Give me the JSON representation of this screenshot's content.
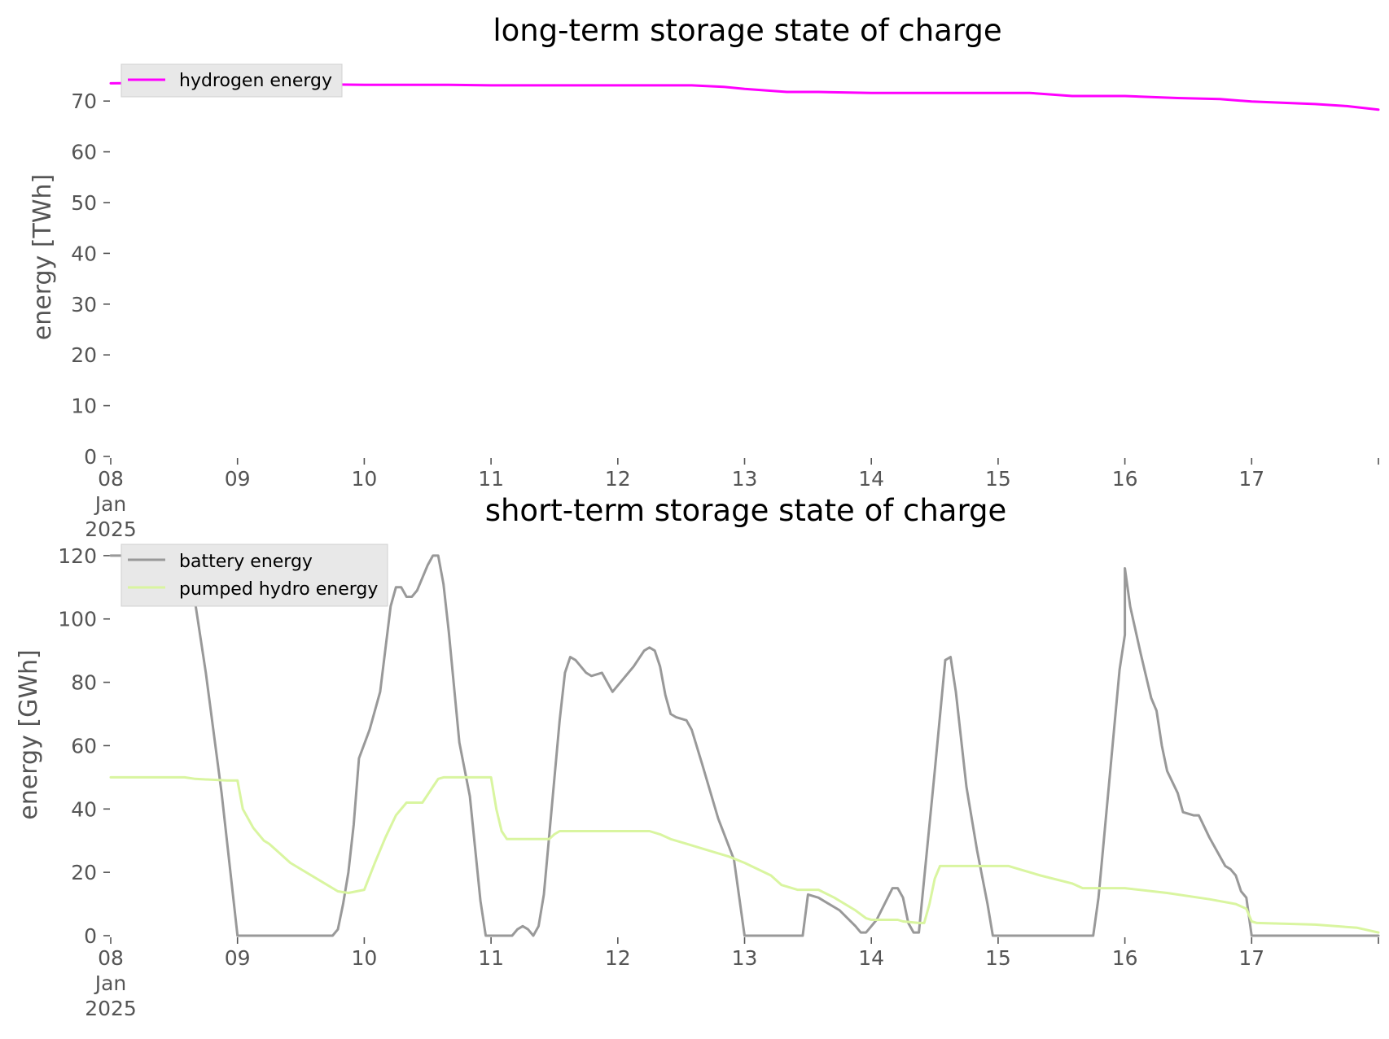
{
  "chart_data": [
    {
      "type": "line",
      "title": "long-term storage state of charge",
      "xlabel": "",
      "ylabel": "energy [TWh]",
      "x_tick_labels": [
        "08\nJan\n2025",
        "09",
        "10",
        "11",
        "12",
        "13",
        "14",
        "15",
        "16",
        "17"
      ],
      "x_tick_dates": [
        "2025-01-08",
        "2025-01-09",
        "2025-01-10",
        "2025-01-11",
        "2025-01-12",
        "2025-01-13",
        "2025-01-14",
        "2025-01-15",
        "2025-01-16",
        "2025-01-17"
      ],
      "xlim": [
        "2025-01-08 00:00",
        "2025-01-18 00:00"
      ],
      "y_ticks": [
        0,
        10,
        20,
        30,
        40,
        50,
        60,
        70
      ],
      "ylim": [
        0,
        75
      ],
      "grid": false,
      "legend_position": "top-left",
      "series": [
        {
          "name": "hydrogen energy",
          "color": "#ff00ff",
          "points": [
            [
              "2025-01-08 00:00",
              73.5
            ],
            [
              "2025-01-08 12:00",
              73.6
            ],
            [
              "2025-01-09 06:00",
              73.4
            ],
            [
              "2025-01-10 00:00",
              73.2
            ],
            [
              "2025-01-10 16:00",
              73.2
            ],
            [
              "2025-01-11 00:00",
              73.1
            ],
            [
              "2025-01-12 00:00",
              73.1
            ],
            [
              "2025-01-12 14:00",
              73.1
            ],
            [
              "2025-01-12 20:00",
              72.8
            ],
            [
              "2025-01-13 00:00",
              72.4
            ],
            [
              "2025-01-13 08:00",
              71.8
            ],
            [
              "2025-01-13 14:00",
              71.8
            ],
            [
              "2025-01-14 00:00",
              71.6
            ],
            [
              "2025-01-15 00:00",
              71.6
            ],
            [
              "2025-01-15 06:00",
              71.6
            ],
            [
              "2025-01-15 14:00",
              71.0
            ],
            [
              "2025-01-16 00:00",
              71.0
            ],
            [
              "2025-01-16 10:00",
              70.6
            ],
            [
              "2025-01-16 18:00",
              70.4
            ],
            [
              "2025-01-17 00:00",
              69.9
            ],
            [
              "2025-01-17 12:00",
              69.4
            ],
            [
              "2025-01-17 18:00",
              69.0
            ],
            [
              "2025-01-18 00:00",
              68.3
            ]
          ]
        }
      ]
    },
    {
      "type": "line",
      "title": "short-term storage state of charge",
      "xlabel": "",
      "ylabel": "energy [GWh]",
      "x_tick_labels": [
        "08\nJan\n2025",
        "09",
        "10",
        "11",
        "12",
        "13",
        "14",
        "15",
        "16",
        "17"
      ],
      "x_tick_dates": [
        "2025-01-08",
        "2025-01-09",
        "2025-01-10",
        "2025-01-11",
        "2025-01-12",
        "2025-01-13",
        "2025-01-14",
        "2025-01-15",
        "2025-01-16",
        "2025-01-17"
      ],
      "xlim": [
        "2025-01-08 00:00",
        "2025-01-18 00:00"
      ],
      "y_ticks": [
        0,
        20,
        40,
        60,
        80,
        100,
        120
      ],
      "ylim": [
        0,
        121
      ],
      "grid": false,
      "legend_position": "top-left",
      "series": [
        {
          "name": "battery energy",
          "color": "#999999",
          "points": [
            [
              "2025-01-08 00:00",
              120
            ],
            [
              "2025-01-08 13:00",
              120
            ],
            [
              "2025-01-08 16:00",
              105
            ],
            [
              "2025-01-08 18:00",
              83
            ],
            [
              "2025-01-08 21:00",
              45
            ],
            [
              "2025-01-09 00:00",
              0
            ],
            [
              "2025-01-09 18:00",
              0
            ],
            [
              "2025-01-09 19:00",
              2
            ],
            [
              "2025-01-09 20:00",
              10
            ],
            [
              "2025-01-09 21:00",
              20
            ],
            [
              "2025-01-09 22:00",
              35
            ],
            [
              "2025-01-09 23:00",
              56
            ],
            [
              "2025-01-10 01:00",
              65
            ],
            [
              "2025-01-10 03:00",
              77
            ],
            [
              "2025-01-10 05:00",
              104
            ],
            [
              "2025-01-10 06:00",
              110
            ],
            [
              "2025-01-10 07:00",
              110
            ],
            [
              "2025-01-10 08:00",
              107
            ],
            [
              "2025-01-10 09:00",
              107
            ],
            [
              "2025-01-10 10:00",
              109
            ],
            [
              "2025-01-10 12:00",
              117
            ],
            [
              "2025-01-10 13:00",
              120
            ],
            [
              "2025-01-10 14:00",
              120
            ],
            [
              "2025-01-10 15:00",
              111
            ],
            [
              "2025-01-10 16:00",
              96
            ],
            [
              "2025-01-10 18:00",
              61
            ],
            [
              "2025-01-10 20:00",
              44
            ],
            [
              "2025-01-10 22:00",
              11
            ],
            [
              "2025-01-10 23:00",
              0
            ],
            [
              "2025-01-11 04:00",
              0
            ],
            [
              "2025-01-11 05:00",
              2
            ],
            [
              "2025-01-11 06:00",
              3
            ],
            [
              "2025-01-11 07:00",
              2
            ],
            [
              "2025-01-11 08:00",
              0
            ],
            [
              "2025-01-11 09:00",
              3
            ],
            [
              "2025-01-11 10:00",
              13
            ],
            [
              "2025-01-11 13:00",
              68
            ],
            [
              "2025-01-11 14:00",
              83
            ],
            [
              "2025-01-11 15:00",
              88
            ],
            [
              "2025-01-11 16:00",
              87
            ],
            [
              "2025-01-11 18:00",
              83
            ],
            [
              "2025-01-11 19:00",
              82
            ],
            [
              "2025-01-11 21:00",
              83
            ],
            [
              "2025-01-11 23:00",
              77
            ],
            [
              "2025-01-12 01:00",
              81
            ],
            [
              "2025-01-12 03:00",
              85
            ],
            [
              "2025-01-12 05:00",
              90
            ],
            [
              "2025-01-12 06:00",
              91
            ],
            [
              "2025-01-12 07:00",
              90
            ],
            [
              "2025-01-12 08:00",
              85
            ],
            [
              "2025-01-12 09:00",
              76
            ],
            [
              "2025-01-12 10:00",
              70
            ],
            [
              "2025-01-12 11:00",
              69
            ],
            [
              "2025-01-12 13:00",
              68
            ],
            [
              "2025-01-12 14:00",
              65
            ],
            [
              "2025-01-12 16:00",
              54
            ],
            [
              "2025-01-12 19:00",
              37
            ],
            [
              "2025-01-12 22:00",
              24
            ],
            [
              "2025-01-13 00:00",
              0
            ],
            [
              "2025-01-13 11:00",
              0
            ],
            [
              "2025-01-13 12:00",
              13
            ],
            [
              "2025-01-13 14:00",
              12
            ],
            [
              "2025-01-13 18:00",
              8
            ],
            [
              "2025-01-13 21:00",
              3
            ],
            [
              "2025-01-13 22:00",
              1
            ],
            [
              "2025-01-13 23:00",
              1
            ],
            [
              "2025-01-14 01:00",
              5
            ],
            [
              "2025-01-14 04:00",
              15
            ],
            [
              "2025-01-14 05:00",
              15
            ],
            [
              "2025-01-14 06:00",
              12
            ],
            [
              "2025-01-14 07:00",
              4
            ],
            [
              "2025-01-14 08:00",
              1
            ],
            [
              "2025-01-14 09:00",
              1
            ],
            [
              "2025-01-14 12:00",
              52
            ],
            [
              "2025-01-14 14:00",
              87
            ],
            [
              "2025-01-14 15:00",
              88
            ],
            [
              "2025-01-14 16:00",
              77
            ],
            [
              "2025-01-14 18:00",
              47
            ],
            [
              "2025-01-14 20:00",
              27
            ],
            [
              "2025-01-14 22:00",
              10
            ],
            [
              "2025-01-14 23:00",
              0
            ],
            [
              "2025-01-15 18:00",
              0
            ],
            [
              "2025-01-15 19:00",
              12
            ],
            [
              "2025-01-15 20:00",
              30
            ],
            [
              "2025-01-15 23:00",
              84
            ],
            [
              "2025-01-15 24:00",
              95
            ],
            [
              "2025-01-16 00:00",
              116
            ],
            [
              "2025-01-16 01:00",
              104
            ],
            [
              "2025-01-16 03:00",
              89
            ],
            [
              "2025-01-16 05:00",
              75
            ],
            [
              "2025-01-16 06:00",
              71
            ],
            [
              "2025-01-16 07:00",
              60
            ],
            [
              "2025-01-16 08:00",
              52
            ],
            [
              "2025-01-16 10:00",
              45
            ],
            [
              "2025-01-16 11:00",
              39
            ],
            [
              "2025-01-16 13:00",
              38
            ],
            [
              "2025-01-16 14:00",
              38
            ],
            [
              "2025-01-16 16:00",
              31
            ],
            [
              "2025-01-16 19:00",
              22
            ],
            [
              "2025-01-16 20:00",
              21
            ],
            [
              "2025-01-16 21:00",
              19
            ],
            [
              "2025-01-16 22:00",
              14
            ],
            [
              "2025-01-16 23:00",
              12
            ],
            [
              "2025-01-17 00:00",
              0
            ],
            [
              "2025-01-18 00:00",
              0
            ]
          ]
        },
        {
          "name": "pumped hydro energy",
          "color": "#d9f5a0",
          "points": [
            [
              "2025-01-08 00:00",
              50
            ],
            [
              "2025-01-08 14:00",
              50
            ],
            [
              "2025-01-08 16:00",
              49.5
            ],
            [
              "2025-01-08 22:00",
              49
            ],
            [
              "2025-01-09 00:00",
              49
            ],
            [
              "2025-01-09 01:00",
              40
            ],
            [
              "2025-01-09 03:00",
              34
            ],
            [
              "2025-01-09 05:00",
              30
            ],
            [
              "2025-01-09 06:00",
              29
            ],
            [
              "2025-01-09 08:00",
              26
            ],
            [
              "2025-01-09 10:00",
              23
            ],
            [
              "2025-01-09 16:00",
              17
            ],
            [
              "2025-01-09 19:00",
              14
            ],
            [
              "2025-01-09 21:00",
              13.5
            ],
            [
              "2025-01-10 00:00",
              14.5
            ],
            [
              "2025-01-10 02:00",
              23
            ],
            [
              "2025-01-10 04:00",
              31
            ],
            [
              "2025-01-10 06:00",
              38
            ],
            [
              "2025-01-10 08:00",
              42
            ],
            [
              "2025-01-10 10:00",
              42
            ],
            [
              "2025-01-10 11:00",
              42
            ],
            [
              "2025-01-10 13:00",
              47
            ],
            [
              "2025-01-10 14:00",
              49.5
            ],
            [
              "2025-01-10 15:00",
              50
            ],
            [
              "2025-01-11 00:00",
              50
            ],
            [
              "2025-01-11 01:00",
              40
            ],
            [
              "2025-01-11 02:00",
              33
            ],
            [
              "2025-01-11 03:00",
              30.5
            ],
            [
              "2025-01-11 11:00",
              30.5
            ],
            [
              "2025-01-11 12:00",
              32
            ],
            [
              "2025-01-11 13:00",
              33
            ],
            [
              "2025-01-12 06:00",
              33
            ],
            [
              "2025-01-12 08:00",
              32
            ],
            [
              "2025-01-12 10:00",
              30.5
            ],
            [
              "2025-01-12 13:00",
              29
            ],
            [
              "2025-01-12 17:00",
              27
            ],
            [
              "2025-01-12 21:00",
              25
            ],
            [
              "2025-01-13 00:00",
              23
            ],
            [
              "2025-01-13 05:00",
              19
            ],
            [
              "2025-01-13 07:00",
              16
            ],
            [
              "2025-01-13 10:00",
              14.5
            ],
            [
              "2025-01-13 14:00",
              14.5
            ],
            [
              "2025-01-13 17:00",
              12
            ],
            [
              "2025-01-13 21:00",
              8
            ],
            [
              "2025-01-13 23:00",
              5.5
            ],
            [
              "2025-01-14 00:00",
              5
            ],
            [
              "2025-01-14 05:00",
              5
            ],
            [
              "2025-01-14 06:00",
              4.5
            ],
            [
              "2025-01-14 09:00",
              4
            ],
            [
              "2025-01-14 10:00",
              4
            ],
            [
              "2025-01-14 11:00",
              10
            ],
            [
              "2025-01-14 12:00",
              18
            ],
            [
              "2025-01-14 13:00",
              22
            ],
            [
              "2025-01-15 02:00",
              22
            ],
            [
              "2025-01-15 04:00",
              21
            ],
            [
              "2025-01-15 08:00",
              19
            ],
            [
              "2025-01-15 14:00",
              16.5
            ],
            [
              "2025-01-15 16:00",
              15
            ],
            [
              "2025-01-16 00:00",
              15
            ],
            [
              "2025-01-16 08:00",
              13.5
            ],
            [
              "2025-01-16 16:00",
              11.5
            ],
            [
              "2025-01-16 21:00",
              10
            ],
            [
              "2025-01-16 23:00",
              8.5
            ],
            [
              "2025-01-17 00:00",
              4.5
            ],
            [
              "2025-01-17 01:00",
              4
            ],
            [
              "2025-01-17 12:00",
              3.5
            ],
            [
              "2025-01-17 20:00",
              2.5
            ],
            [
              "2025-01-18 00:00",
              1
            ]
          ]
        }
      ]
    }
  ]
}
